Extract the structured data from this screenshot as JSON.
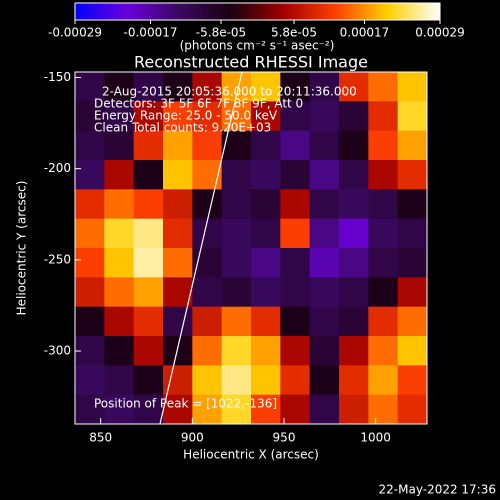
{
  "chart_data": {
    "type": "heatmap",
    "title": "Reconstructed RHESSI Image",
    "xlabel": "Heliocentric X (arcsec)",
    "ylabel": "Heliocentric Y (arcsec)",
    "colorbar_label": "(photons cm⁻² s⁻¹ asec⁻²)",
    "xlim": [
      836,
      1028
    ],
    "ylim": [
      -340,
      -147
    ],
    "xticks": [
      850,
      900,
      950,
      1000
    ],
    "yticks": [
      -150,
      -200,
      -250,
      -300
    ],
    "zlim": [
      -0.00029,
      0.00029
    ],
    "zticks": [
      -0.00029,
      -0.00017,
      {
        "value": -5.8e-05,
        "label": "-5.8e-05"
      },
      {
        "value": 5.8e-05,
        "label": "5.8e-05"
      },
      0.00017,
      0.00029
    ],
    "colorscale": [
      "#0000ff",
      "#6a00d8",
      "#3a0860",
      "#1a0010",
      "#a00000",
      "#ff4000",
      "#ffd000",
      "#ffffff"
    ],
    "annotations": [
      "2-Aug-2015 20:05:36.000 to 20:11:36.000",
      "Detectors: 3F 5F 6F 7F 8F 9F, Att 0",
      "Energy Range: 25.0 - 50.0 keV",
      "Clean     Total counts: 9.20E+03",
      "Position of Peak = [1022,-136]"
    ],
    "timestamp": "22-May-2022 17:36",
    "z": [
      [
        -0.0001,
        -5e-05,
        -0.0001,
        -5e-05,
        5e-05,
        0.00018,
        0.0002,
        -5e-05,
        -0.0001,
        0.0001,
        0.00015,
        0.0002
      ],
      [
        -8e-05,
        -0.0001,
        5e-05,
        0.00012,
        0.0001,
        0.00015,
        5e-05,
        -0.0001,
        -0.00012,
        -8e-05,
        0.0001,
        0.00022
      ],
      [
        -0.0001,
        -8e-05,
        0.0001,
        0.00018,
        0.00012,
        -5e-05,
        -0.0001,
        -0.00015,
        -0.0001,
        -5e-05,
        0.00012,
        0.00018
      ],
      [
        -0.00012,
        5e-05,
        -5e-05,
        0.0002,
        0.00015,
        -0.0001,
        -0.00012,
        -8e-05,
        -0.00015,
        -0.0001,
        5e-05,
        0.0001
      ],
      [
        0.0001,
        0.00015,
        0.00012,
        8e-05,
        -5e-05,
        -0.0001,
        -8e-05,
        5e-05,
        -0.0001,
        -0.00012,
        -0.0001,
        -5e-05
      ],
      [
        0.00015,
        0.00022,
        0.00025,
        0.0001,
        -0.0001,
        -0.00012,
        -0.0001,
        0.00012,
        -0.00015,
        -0.0002,
        -0.00012,
        -0.0001
      ],
      [
        0.00012,
        0.0002,
        0.00026,
        0.00015,
        -8e-05,
        -0.00012,
        -0.00015,
        -0.0001,
        -0.00018,
        -0.00015,
        -0.0001,
        -8e-05
      ],
      [
        8e-05,
        0.00015,
        0.00018,
        5e-05,
        -0.0001,
        -8e-05,
        -0.00012,
        -0.0001,
        -0.00012,
        -0.0001,
        -5e-05,
        5e-05
      ],
      [
        -5e-05,
        5e-05,
        0.0001,
        -0.0001,
        8e-05,
        0.00015,
        0.0001,
        -5e-05,
        -0.0001,
        -8e-05,
        0.0001,
        0.00015
      ],
      [
        -0.0001,
        -5e-05,
        5e-05,
        -5e-05,
        0.00015,
        0.00022,
        0.00018,
        5e-05,
        -8e-05,
        5e-05,
        0.00015,
        0.0002
      ],
      [
        -0.00012,
        -0.0001,
        -5e-05,
        8e-05,
        0.0002,
        0.00025,
        0.0002,
        0.0001,
        -5e-05,
        0.0001,
        0.00018,
        0.00012
      ],
      [
        -0.0001,
        -0.00012,
        -0.0001,
        5e-05,
        0.00018,
        0.00022,
        0.00012,
        5e-05,
        -0.0001,
        8e-05,
        0.00015,
        0.0001
      ]
    ]
  }
}
